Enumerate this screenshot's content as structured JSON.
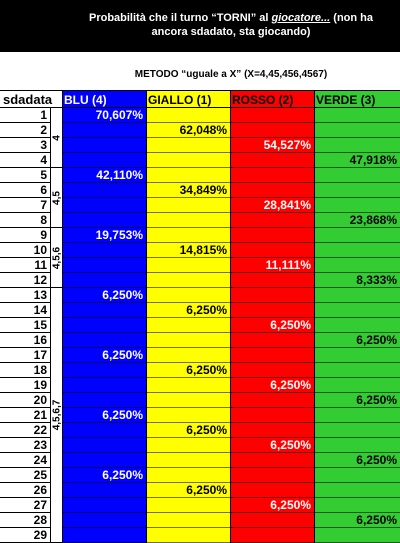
{
  "title": {
    "line1_before": "Probabilità che il turno “TORNI” al ",
    "line1_italic": "giocatore...",
    "line1_after": " (non ha",
    "line2": "ancora sdadato, sta giocando)"
  },
  "method_label": "METODO “uguale a X” (X=4,45,456,4567)",
  "header": {
    "sdadata": "sdadata",
    "columns": [
      "BLU (4)",
      "GIALLO (1)",
      "ROSSO (2)",
      "VERDE (3)"
    ]
  },
  "colors": {
    "blu": "#0000ff",
    "giallo": "#ffff00",
    "rosso": "#ff0000",
    "verde": "#33cc33"
  },
  "rows": [
    "1",
    "2",
    "3",
    "4",
    "5",
    "6",
    "7",
    "8",
    "9",
    "10",
    "11",
    "12",
    "13",
    "14",
    "15",
    "16",
    "17",
    "18",
    "19",
    "20",
    "21",
    "22",
    "23",
    "24",
    "25",
    "26",
    "27",
    "28",
    "29"
  ],
  "groups": [
    "4",
    "4,5",
    "4,5,6",
    "4,5,6,7"
  ],
  "values": {
    "blu": [
      "70,607%",
      "42,110%",
      "19,753%",
      "6,250%",
      "6,250%",
      "6,250%",
      "6,250%"
    ],
    "giallo": [
      "62,048%",
      "34,849%",
      "14,815%",
      "6,250%",
      "6,250%",
      "6,250%",
      "6,250%"
    ],
    "rosso": [
      "54,527%",
      "28,841%",
      "11,111%",
      "6,250%",
      "6,250%",
      "6,250%",
      "6,250%"
    ],
    "verde": [
      "47,918%",
      "23,868%",
      "8,333%",
      "6,250%",
      "6,250%",
      "6,250%",
      "6,250%"
    ]
  }
}
